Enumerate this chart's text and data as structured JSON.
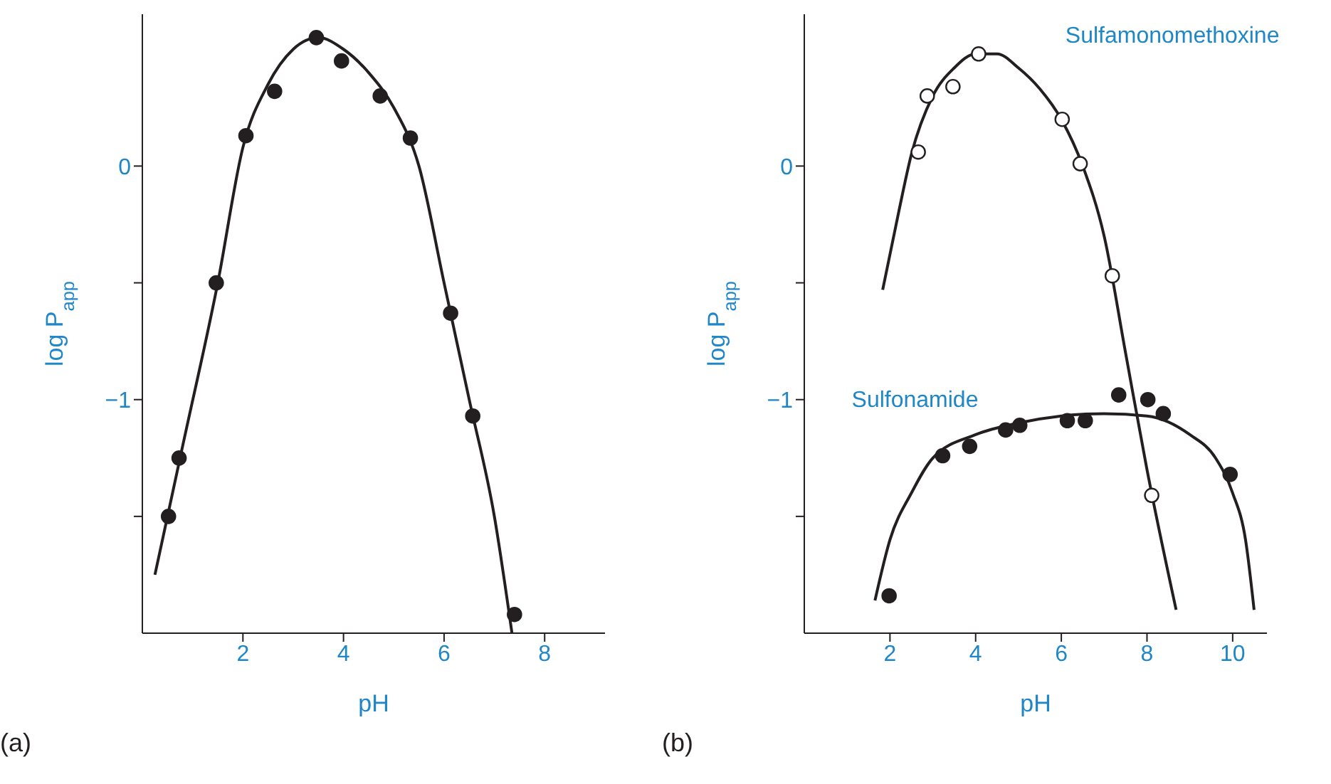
{
  "chart_data": [
    {
      "type": "scatter",
      "xlabel": "pH",
      "ylabel": "log P$_{app}$",
      "xlim": [
        0,
        9.2
      ],
      "ylim": [
        -2,
        0.65
      ],
      "xticks": [
        2,
        4,
        6,
        8
      ],
      "yticks": [
        {
          "value": -1.5,
          "label": null
        },
        {
          "value": -1,
          "label": "−1"
        },
        {
          "value": -0.5,
          "label": null
        },
        0
      ],
      "annotations": [
        "(a)"
      ],
      "series": [
        {
          "marker": "circle",
          "color": "#231f20",
          "x": [
            0.52,
            0.73,
            1.47,
            2.06,
            2.63,
            3.46,
            3.96,
            4.73,
            5.33,
            6.13,
            6.57,
            7.4
          ],
          "values": [
            -1.5,
            -1.25,
            -0.5,
            0.13,
            0.32,
            0.55,
            0.45,
            0.3,
            0.12,
            -0.63,
            -1.07,
            -1.92
          ]
        },
        {
          "type": "line",
          "marker": "none",
          "color": "#231f20",
          "x": [
            0.25,
            0.8,
            1.5,
            2,
            2.5,
            3,
            3.5,
            4,
            4.5,
            5,
            5.5,
            6,
            6.5,
            7,
            7.35
          ],
          "values": [
            -1.75,
            -1.2,
            -0.5,
            0.08,
            0.35,
            0.5,
            0.55,
            0.5,
            0.4,
            0.25,
            0.0,
            -0.5,
            -1.0,
            -1.5,
            -2.0
          ]
        }
      ]
    },
    {
      "type": "scatter",
      "xlabel": "pH",
      "ylabel": "log P$_{app}$",
      "xlim": [
        0,
        10.8
      ],
      "ylim": [
        -2,
        0.65
      ],
      "xticks": [
        2,
        4,
        6,
        8,
        10
      ],
      "yticks": [
        {
          "value": -1.5,
          "label": null
        },
        {
          "value": -1,
          "label": "−1"
        },
        {
          "value": -0.5,
          "label": null
        },
        0
      ],
      "annotations": [
        "(b)"
      ],
      "series": [
        {
          "marker": "circle",
          "color": "#ffffff",
          "x": [
            2.66,
            2.87,
            3.47,
            4.07,
            6.02,
            6.44,
            7.19,
            8.11
          ],
          "values": [
            0.06,
            0.3,
            0.34,
            0.48,
            0.2,
            0.01,
            -0.47,
            -1.41
          ]
        },
        {
          "type": "line",
          "name": "Sulfamonomethoxine",
          "marker": "none",
          "color": "#231f20",
          "x": [
            1.83,
            2.2,
            2.5,
            3,
            3.5,
            4,
            4.5,
            5,
            5.5,
            6,
            6.5,
            7,
            7.5,
            8,
            8.68
          ],
          "values": [
            -0.53,
            -0.2,
            0.05,
            0.3,
            0.42,
            0.48,
            0.48,
            0.42,
            0.33,
            0.2,
            0.0,
            -0.3,
            -0.8,
            -1.3,
            -1.9
          ]
        },
        {
          "marker": "circle",
          "color": "#231f20",
          "x": [
            1.98,
            3.23,
            3.86,
            4.7,
            5.03,
            6.14,
            6.56,
            7.34,
            8.02,
            8.38,
            9.94
          ],
          "values": [
            -1.84,
            -1.24,
            -1.2,
            -1.13,
            -1.11,
            -1.09,
            -1.09,
            -0.98,
            -1.0,
            -1.06,
            -1.32
          ]
        },
        {
          "type": "line",
          "name": "Sulfonamide",
          "marker": "none",
          "color": "#231f20",
          "x": [
            1.65,
            2,
            2.5,
            3,
            4,
            5,
            6,
            7,
            8,
            9,
            9.6,
            10,
            10.3,
            10.5
          ],
          "values": [
            -1.86,
            -1.6,
            -1.4,
            -1.25,
            -1.15,
            -1.1,
            -1.07,
            -1.06,
            -1.07,
            -1.15,
            -1.25,
            -1.4,
            -1.6,
            -1.9
          ]
        }
      ]
    }
  ]
}
